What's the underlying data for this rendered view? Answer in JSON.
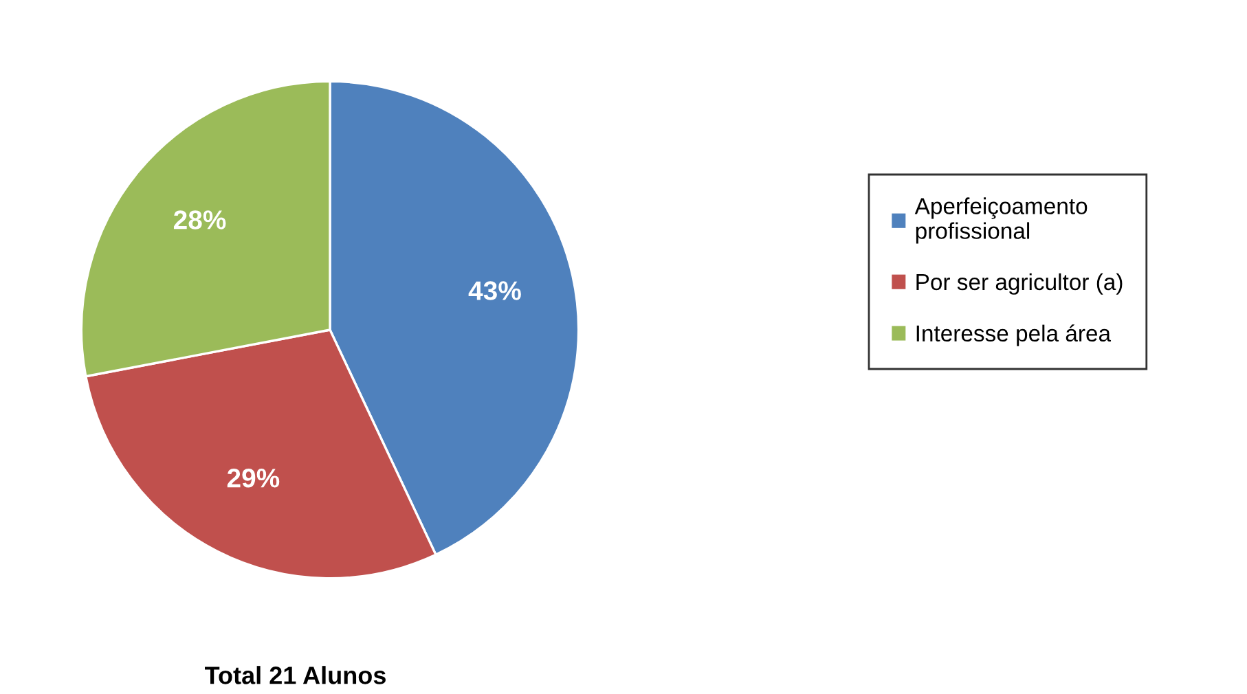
{
  "chart_data": {
    "type": "pie",
    "title": "Total 21 Alunos",
    "categories": [
      "Aperfeiçoamento\nprofissional",
      "Por ser agricultor (a)",
      "Interesse pela área"
    ],
    "values": [
      43,
      29,
      28
    ],
    "colors": [
      "#4f81bd",
      "#c0504d",
      "#9bbb59"
    ],
    "value_labels": [
      "43%",
      "29%",
      "28%"
    ],
    "legend": "right"
  }
}
